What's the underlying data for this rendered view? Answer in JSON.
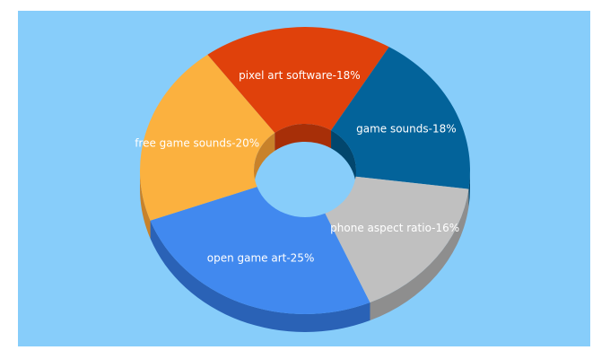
{
  "chart_data": {
    "type": "pie",
    "style": "3d-donut",
    "title": "",
    "background": "#87cdfa",
    "slices": [
      {
        "label": "open game art-25%",
        "value": 25,
        "color": "#4189ef",
        "side_color": "#2a62b6"
      },
      {
        "label": "free game sounds-20%",
        "value": 20,
        "color": "#fbb13f",
        "side_color": "#c8822a"
      },
      {
        "label": "pixel art software-18%",
        "value": 18,
        "color": "#e0410b",
        "side_color": "#a72f08"
      },
      {
        "label": "game sounds-18%",
        "value": 18,
        "color": "#03639a",
        "side_color": "#02466d"
      },
      {
        "label": "phone aspect ratio-16%",
        "value": 16,
        "color": "#c0c0c0",
        "side_color": "#8e8e8e"
      }
    ]
  }
}
